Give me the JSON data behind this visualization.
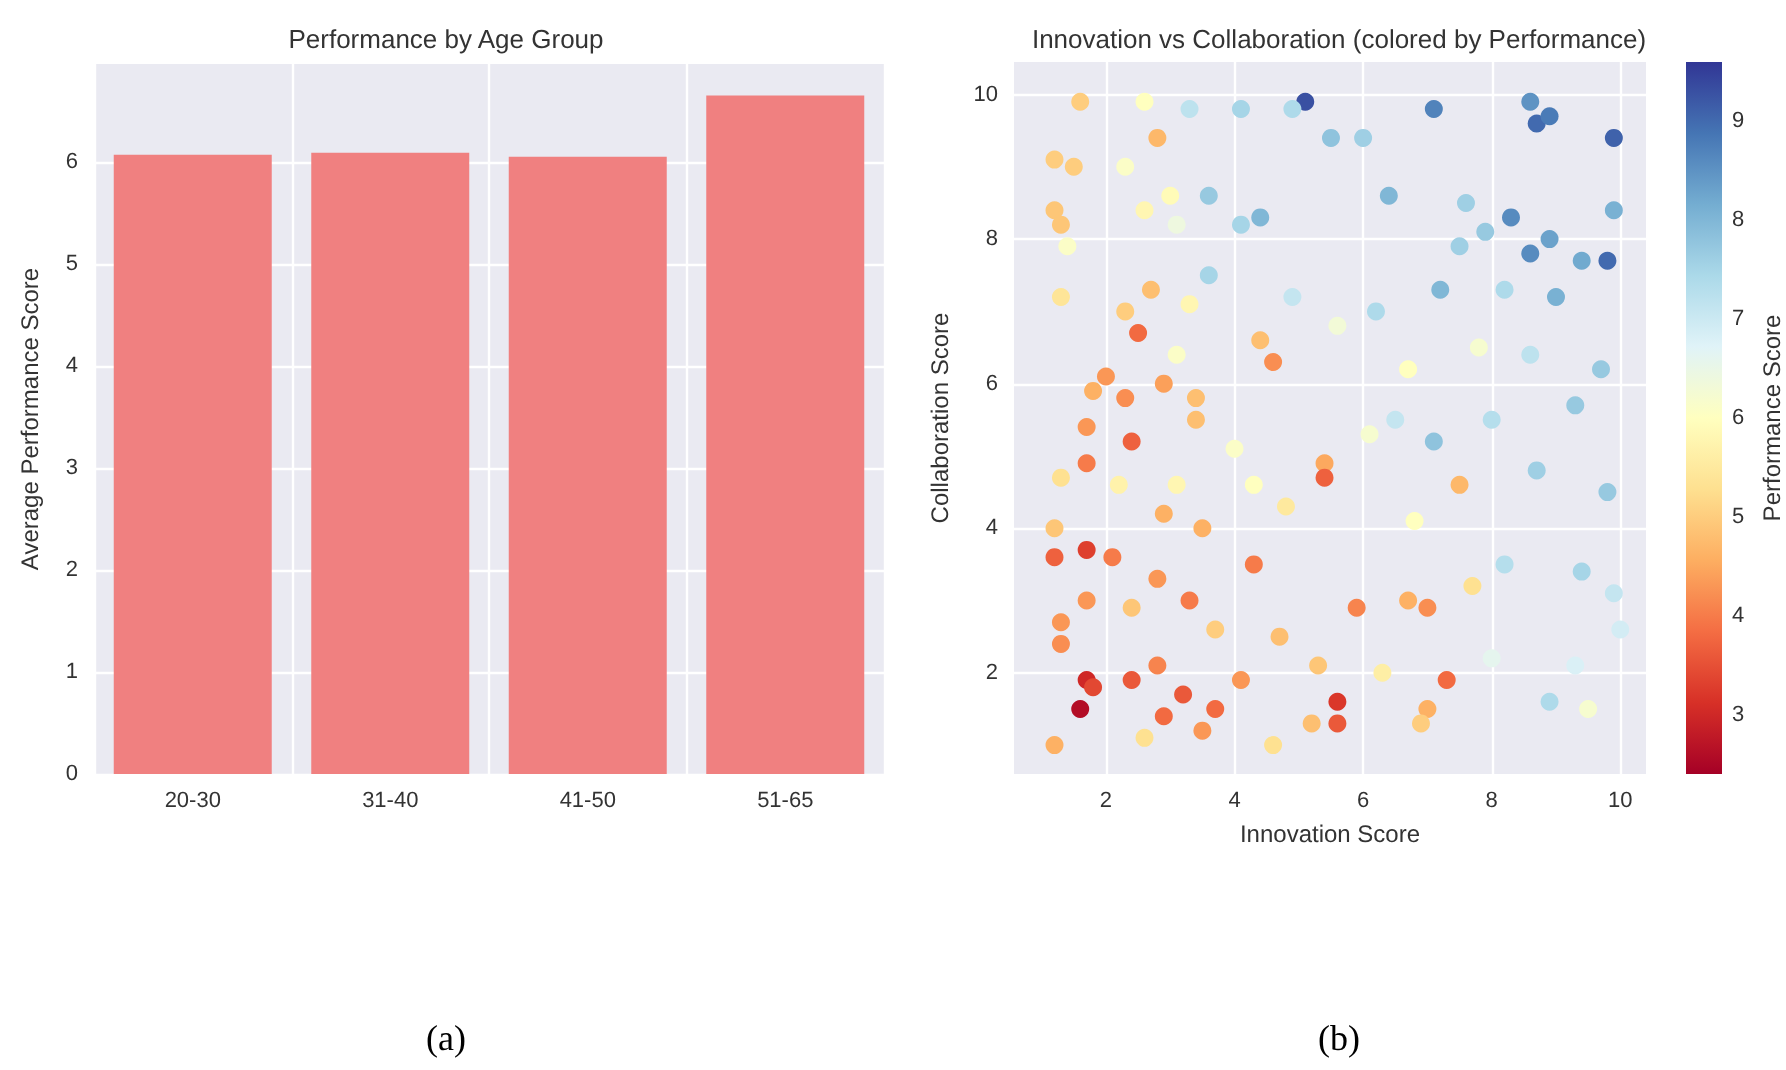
{
  "chart_data": [
    {
      "type": "bar",
      "title": "Performance by Age Group",
      "ylabel": "Average Performance Score",
      "categories": [
        "20-30",
        "31-40",
        "41-50",
        "51-65"
      ],
      "values": [
        6.07,
        6.09,
        6.05,
        6.65
      ],
      "color": "#f08080",
      "ylim": [
        0,
        6.96
      ],
      "yticks": [
        0,
        1,
        2,
        3,
        4,
        5,
        6
      ],
      "grid": true,
      "annotations": [
        "(a)"
      ]
    },
    {
      "type": "scatter",
      "title": "Innovation vs Collaboration (colored by Performance)",
      "xlabel": "Innovation Score",
      "ylabel": "Collaboration Score",
      "clabel": "Performance Score",
      "xlim": [
        0.57,
        10.4
      ],
      "ylim": [
        0.6,
        10.45
      ],
      "xticks": [
        2,
        4,
        6,
        8,
        10
      ],
      "yticks": [
        2,
        4,
        6,
        8,
        10
      ],
      "clim": [
        2.4,
        9.6
      ],
      "cticks": [
        3,
        4,
        5,
        6,
        7,
        8,
        9
      ],
      "grid": true,
      "marker": "circle",
      "annotations": [
        "(b)"
      ],
      "x": [
        5.1,
        1.6,
        2.6,
        3.3,
        4.1,
        4.9,
        7.1,
        8.6,
        8.7,
        8.9,
        9.9,
        6.0,
        5.5,
        1.2,
        1.5,
        2.3,
        3.0,
        2.8,
        4.1,
        4.4,
        3.6,
        1.2,
        1.3,
        2.6,
        7.9,
        8.3,
        8.9,
        9.9,
        6.4,
        7.6,
        3.1,
        1.3,
        2.3,
        2.7,
        3.3,
        2.5,
        2.0,
        1.8,
        2.3,
        2.9,
        3.4,
        4.4,
        4.6,
        3.6,
        4.9,
        6.2,
        7.2,
        8.6,
        9.0,
        9.4,
        9.8,
        8.2,
        5.6,
        6.7,
        7.8,
        8.6,
        9.7,
        7.5,
        1.4,
        3.1,
        2.4,
        1.7,
        1.7,
        1.3,
        3.1,
        2.2,
        1.2,
        1.7,
        1.2,
        2.9,
        3.5,
        4.3,
        4.8,
        5.4,
        5.4,
        6.1,
        6.5,
        7.1,
        8.0,
        8.7,
        9.3,
        9.8,
        7.5,
        6.8,
        4.0,
        3.4,
        2.1,
        2.8,
        3.3,
        1.3,
        1.3,
        1.7,
        2.4,
        3.7,
        4.3,
        4.7,
        5.9,
        6.7,
        7.0,
        7.7,
        8.2,
        9.4,
        9.9,
        5.3,
        8.0,
        9.3,
        10.0,
        6.3,
        1.7,
        1.8,
        1.6,
        1.2,
        2.4,
        2.8,
        2.9,
        3.2,
        3.5,
        3.7,
        4.1,
        4.6,
        5.2,
        5.6,
        5.6,
        7.0,
        7.3,
        6.9,
        8.9,
        9.5,
        2.6
      ],
      "values": [
        9.9,
        9.9,
        9.9,
        9.8,
        9.8,
        9.8,
        9.8,
        9.9,
        9.6,
        9.7,
        9.4,
        9.4,
        9.4,
        9.1,
        9.0,
        9.0,
        8.6,
        9.4,
        8.2,
        8.3,
        8.6,
        8.4,
        8.2,
        8.4,
        8.1,
        8.3,
        8.0,
        8.4,
        8.6,
        8.5,
        8.2,
        7.2,
        7.0,
        7.3,
        7.1,
        6.7,
        6.1,
        5.9,
        5.8,
        6.0,
        5.8,
        6.6,
        6.3,
        7.5,
        7.2,
        7.0,
        7.3,
        7.8,
        7.2,
        7.7,
        7.7,
        7.3,
        6.8,
        6.2,
        6.5,
        6.4,
        6.2,
        7.9,
        7.9,
        6.4,
        5.2,
        5.4,
        4.9,
        4.7,
        4.6,
        4.6,
        4.0,
        3.7,
        3.6,
        4.2,
        4.0,
        4.6,
        4.3,
        4.9,
        4.7,
        5.3,
        5.5,
        5.2,
        5.5,
        4.8,
        5.7,
        4.5,
        4.6,
        4.1,
        5.1,
        5.5,
        3.6,
        3.3,
        3.0,
        2.7,
        2.4,
        3.0,
        2.9,
        2.6,
        3.5,
        2.5,
        2.9,
        3.0,
        2.9,
        3.2,
        3.5,
        3.4,
        3.1,
        2.1,
        2.2,
        2.1,
        2.6,
        2.0,
        1.9,
        1.8,
        1.5,
        1.0,
        1.9,
        2.1,
        1.4,
        1.7,
        1.2,
        1.5,
        1.9,
        1.0,
        1.3,
        1.6,
        1.3,
        1.5,
        1.9,
        1.3,
        1.6,
        1.5,
        1.1
      ],
      "cvalues": [
        9.3,
        5.0,
        6.0,
        7.2,
        7.5,
        7.4,
        8.7,
        8.5,
        9.0,
        8.8,
        9.1,
        7.6,
        7.8,
        5.0,
        5.0,
        6.1,
        5.9,
        4.7,
        7.5,
        8.0,
        7.7,
        4.9,
        4.9,
        5.8,
        7.7,
        8.6,
        8.3,
        8.1,
        8.0,
        7.6,
        6.4,
        5.4,
        5.0,
        4.8,
        5.8,
        3.8,
        4.3,
        4.6,
        4.2,
        4.4,
        4.8,
        4.8,
        4.2,
        7.5,
        7.1,
        7.4,
        8.0,
        8.6,
        8.1,
        8.2,
        9.0,
        7.4,
        6.3,
        6.0,
        6.2,
        7.2,
        7.7,
        7.6,
        6.1,
        6.1,
        3.7,
        4.3,
        4.0,
        5.3,
        5.8,
        5.7,
        4.9,
        3.3,
        3.7,
        4.6,
        4.6,
        6.0,
        5.5,
        4.5,
        3.7,
        6.2,
        7.1,
        7.8,
        7.3,
        7.6,
        7.7,
        7.7,
        4.7,
        6.0,
        6.1,
        4.8,
        4.0,
        4.3,
        4.0,
        4.3,
        4.2,
        4.3,
        4.9,
        5.0,
        4.0,
        4.8,
        4.1,
        4.6,
        4.2,
        5.3,
        7.3,
        7.5,
        7.1,
        4.9,
        6.6,
        6.8,
        6.9,
        5.6,
        3.0,
        3.4,
        2.6,
        4.6,
        3.6,
        4.1,
        3.8,
        3.6,
        4.3,
        3.8,
        4.3,
        5.3,
        4.8,
        3.2,
        3.6,
        4.6,
        3.8,
        5.0,
        7.4,
        6.2,
        5.3
      ]
    }
  ]
}
